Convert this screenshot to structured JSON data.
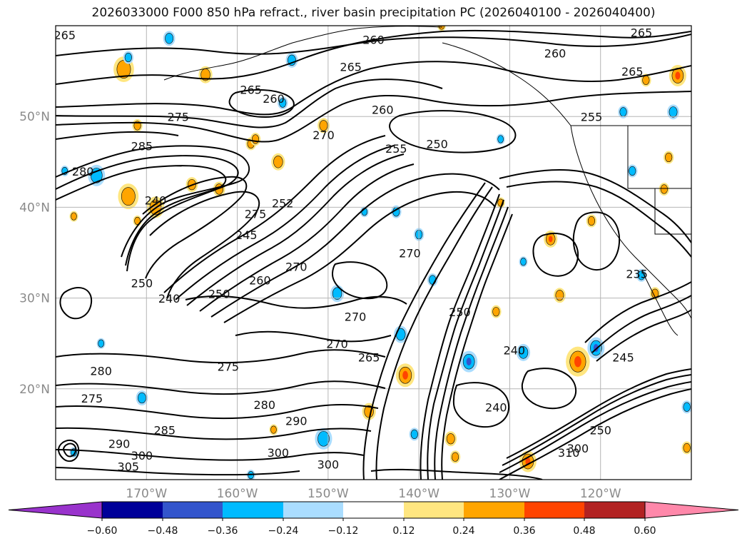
{
  "title": "2026033000 F000 850 hPa refract., river basin precipitation PC (2026040100 - 2026040400)",
  "map": {
    "lon_range": [
      -180,
      -110
    ],
    "lat_range": [
      10,
      60
    ],
    "lat_labels": [
      "50°N",
      "40°N",
      "30°N",
      "20°N"
    ],
    "lat_values": [
      50,
      40,
      30,
      20
    ],
    "lon_labels": [
      "170°W",
      "160°W",
      "150°W",
      "140°W",
      "130°W",
      "120°W"
    ],
    "lon_values": [
      -170,
      -160,
      -150,
      -140,
      -130,
      -120
    ],
    "grid": true,
    "contour_labels": [
      {
        "text": "265",
        "lon": -179.0,
        "lat": 58.5
      },
      {
        "text": "260",
        "lon": -145.0,
        "lat": 58.0
      },
      {
        "text": "265",
        "lon": -147.5,
        "lat": 55.0
      },
      {
        "text": "260",
        "lon": -125.0,
        "lat": 56.5
      },
      {
        "text": "265",
        "lon": -115.5,
        "lat": 58.8
      },
      {
        "text": "265",
        "lon": -116.5,
        "lat": 54.5
      },
      {
        "text": "255",
        "lon": -121.0,
        "lat": 49.5
      },
      {
        "text": "275",
        "lon": -166.5,
        "lat": 49.5
      },
      {
        "text": "285",
        "lon": -170.5,
        "lat": 46.3
      },
      {
        "text": "280",
        "lon": -177.0,
        "lat": 43.5
      },
      {
        "text": "240",
        "lon": -169.0,
        "lat": 40.3
      },
      {
        "text": "260",
        "lon": -156.0,
        "lat": 51.5
      },
      {
        "text": "265",
        "lon": -158.5,
        "lat": 52.5
      },
      {
        "text": "270",
        "lon": -150.5,
        "lat": 47.5
      },
      {
        "text": "260",
        "lon": -144.0,
        "lat": 50.3
      },
      {
        "text": "255",
        "lon": -142.5,
        "lat": 46.0
      },
      {
        "text": "250",
        "lon": -138.0,
        "lat": 46.5
      },
      {
        "text": "275",
        "lon": -158.0,
        "lat": 38.8
      },
      {
        "text": "252",
        "lon": -155.0,
        "lat": 40.0
      },
      {
        "text": "245",
        "lon": -159.0,
        "lat": 36.5
      },
      {
        "text": "270",
        "lon": -141.0,
        "lat": 34.5
      },
      {
        "text": "250",
        "lon": -170.5,
        "lat": 31.2
      },
      {
        "text": "240",
        "lon": -167.5,
        "lat": 29.5
      },
      {
        "text": "250",
        "lon": -162.0,
        "lat": 30.0
      },
      {
        "text": "260",
        "lon": -157.5,
        "lat": 31.5
      },
      {
        "text": "270",
        "lon": -153.5,
        "lat": 33.0
      },
      {
        "text": "270",
        "lon": -147.0,
        "lat": 27.5
      },
      {
        "text": "270",
        "lon": -149.0,
        "lat": 24.5
      },
      {
        "text": "265",
        "lon": -145.5,
        "lat": 23.0
      },
      {
        "text": "250",
        "lon": -135.5,
        "lat": 28.0
      },
      {
        "text": "240",
        "lon": -129.5,
        "lat": 23.8
      },
      {
        "text": "245",
        "lon": -117.5,
        "lat": 23.0
      },
      {
        "text": "235",
        "lon": -116.0,
        "lat": 32.2
      },
      {
        "text": "275",
        "lon": -161.0,
        "lat": 22.0
      },
      {
        "text": "280",
        "lon": -157.0,
        "lat": 17.8
      },
      {
        "text": "290",
        "lon": -153.5,
        "lat": 16.0
      },
      {
        "text": "280",
        "lon": -175.0,
        "lat": 21.5
      },
      {
        "text": "275",
        "lon": -176.0,
        "lat": 18.5
      },
      {
        "text": "285",
        "lon": -168.0,
        "lat": 15.0
      },
      {
        "text": "290",
        "lon": -173.0,
        "lat": 13.5
      },
      {
        "text": "300",
        "lon": -170.5,
        "lat": 12.2
      },
      {
        "text": "305",
        "lon": -172.0,
        "lat": 11.0
      },
      {
        "text": "300",
        "lon": -155.5,
        "lat": 12.5
      },
      {
        "text": "300",
        "lon": -150.0,
        "lat": 11.2
      },
      {
        "text": "240",
        "lon": -131.5,
        "lat": 17.5
      },
      {
        "text": "300",
        "lon": -122.5,
        "lat": 13.0
      },
      {
        "text": "250",
        "lon": -120.0,
        "lat": 15.0
      },
      {
        "text": "310",
        "lon": -123.5,
        "lat": 12.5
      }
    ]
  },
  "colorbar": {
    "ticks": [
      "−0.60",
      "−0.48",
      "−0.36",
      "−0.24",
      "−0.12",
      "0.12",
      "0.24",
      "0.36",
      "0.48",
      "0.60"
    ],
    "colors": [
      "#9933cc",
      "#000099",
      "#3355cc",
      "#00bbff",
      "#aaddff",
      "#ffffff",
      "#ffe680",
      "#ffa500",
      "#ff4400",
      "#b22222",
      "#ff88aa"
    ]
  },
  "shading_colors": {
    "pos_light": "#ffe680",
    "pos_mid": "#ffa500",
    "pos_strong": "#ff4400",
    "neg_light": "#aaddff",
    "neg_mid": "#00bbff",
    "neg_strong": "#3355cc"
  }
}
